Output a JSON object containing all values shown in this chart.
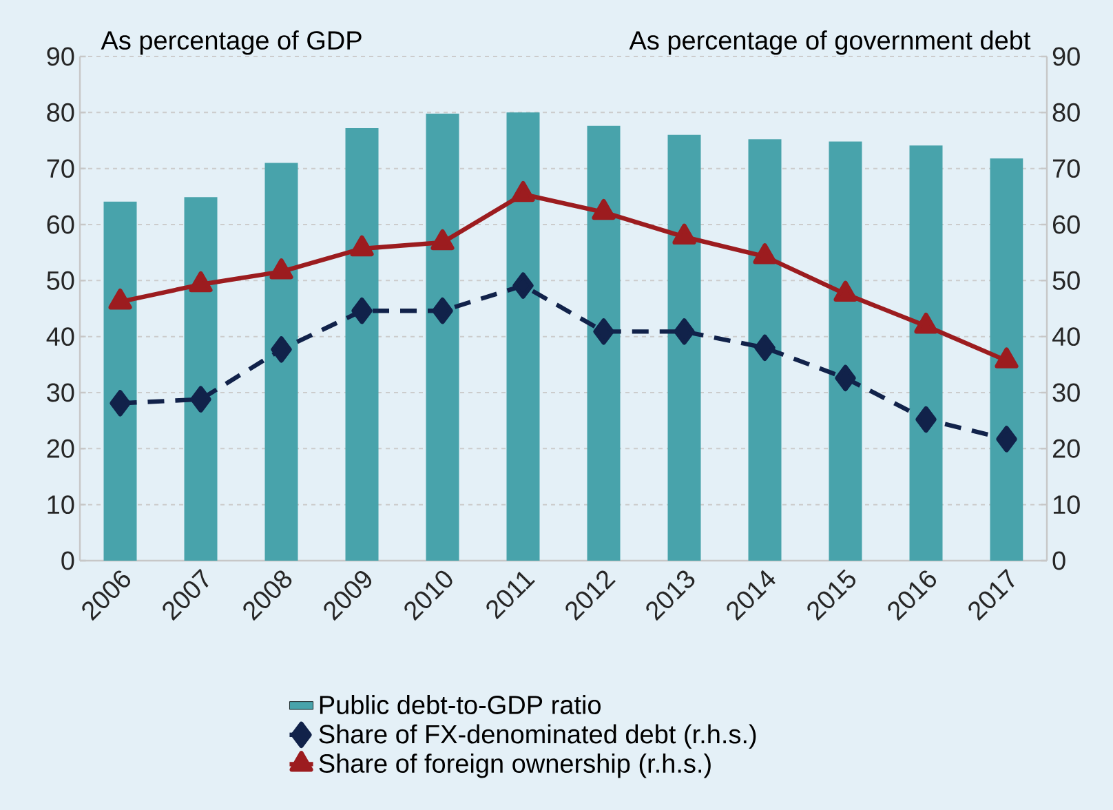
{
  "chart_data": {
    "type": "bar",
    "categories": [
      "2006",
      "2007",
      "2008",
      "2009",
      "2010",
      "2011",
      "2012",
      "2013",
      "2014",
      "2015",
      "2016",
      "2017"
    ],
    "ylabel": "As percentage of GDP",
    "y2label": "As percentage of government debt",
    "ylim": [
      0,
      90
    ],
    "yticks": [
      0,
      10,
      20,
      30,
      40,
      50,
      60,
      70,
      80,
      90
    ],
    "y2lim": [
      0,
      90
    ],
    "y2ticks": [
      0,
      10,
      20,
      30,
      40,
      50,
      60,
      70,
      80,
      90
    ],
    "grid": "y",
    "legend": "bottom",
    "series": [
      {
        "name": "Public debt-to-GDP ratio",
        "color": "#48a3ab",
        "values": [
          64.1,
          64.9,
          71,
          77.2,
          79.8,
          80,
          77.6,
          76,
          75.2,
          74.8,
          74.1,
          71.8
        ]
      },
      {
        "name": "Share of FX-denominated debt (r.h.s.)",
        "type": "line",
        "axis": "y2",
        "color": "#11224a",
        "marker": "diamond",
        "line_style": "dashed",
        "values": [
          28.1,
          28.8,
          37.7,
          44.6,
          44.6,
          49.1,
          40.9,
          40.9,
          38,
          32.6,
          25.2,
          21.7
        ]
      },
      {
        "name": "Share of foreign ownership (r.h.s.)",
        "type": "line",
        "axis": "y2",
        "color": "#9c1c1f",
        "marker": "triangle",
        "line_style": "solid",
        "values": [
          46.2,
          49.3,
          51.6,
          55.7,
          56.8,
          65.4,
          62.2,
          57.8,
          54.3,
          47.6,
          41.9,
          35.7
        ]
      }
    ]
  }
}
